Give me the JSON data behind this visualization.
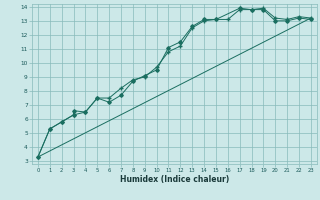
{
  "xlabel": "Humidex (Indice chaleur)",
  "bg_color": "#cce8e8",
  "grid_color": "#88bbbb",
  "line_color": "#1a6e60",
  "xlim": [
    -0.5,
    23.5
  ],
  "ylim": [
    2.8,
    14.2
  ],
  "xticks": [
    0,
    1,
    2,
    3,
    4,
    5,
    6,
    7,
    8,
    9,
    10,
    11,
    12,
    13,
    14,
    15,
    16,
    17,
    18,
    19,
    20,
    21,
    22,
    23
  ],
  "yticks": [
    3,
    4,
    5,
    6,
    7,
    8,
    9,
    10,
    11,
    12,
    13,
    14
  ],
  "line1_x": [
    0,
    1,
    2,
    3,
    3,
    4,
    5,
    6,
    7,
    8,
    9,
    10,
    11,
    12,
    13,
    14,
    15,
    17,
    18,
    19,
    20,
    21,
    22,
    23
  ],
  "line1_y": [
    3.3,
    5.3,
    5.8,
    6.3,
    6.6,
    6.5,
    7.5,
    7.2,
    7.7,
    8.7,
    9.1,
    9.5,
    11.1,
    11.5,
    12.6,
    13.1,
    13.1,
    13.9,
    13.8,
    13.8,
    13.0,
    13.0,
    13.2,
    13.1
  ],
  "line2_x": [
    0,
    1,
    2,
    3,
    4,
    5,
    6,
    7,
    8,
    9,
    10,
    11,
    12,
    13,
    14,
    15,
    16,
    17,
    18,
    19,
    20,
    21,
    22,
    23
  ],
  "line2_y": [
    3.3,
    5.3,
    5.8,
    6.3,
    6.5,
    7.5,
    7.5,
    8.2,
    8.8,
    9.0,
    9.7,
    10.8,
    11.2,
    12.5,
    13.0,
    13.1,
    13.1,
    13.8,
    13.8,
    13.9,
    13.2,
    13.1,
    13.3,
    13.2
  ],
  "line3_x": [
    0,
    23
  ],
  "line3_y": [
    3.3,
    13.2
  ]
}
